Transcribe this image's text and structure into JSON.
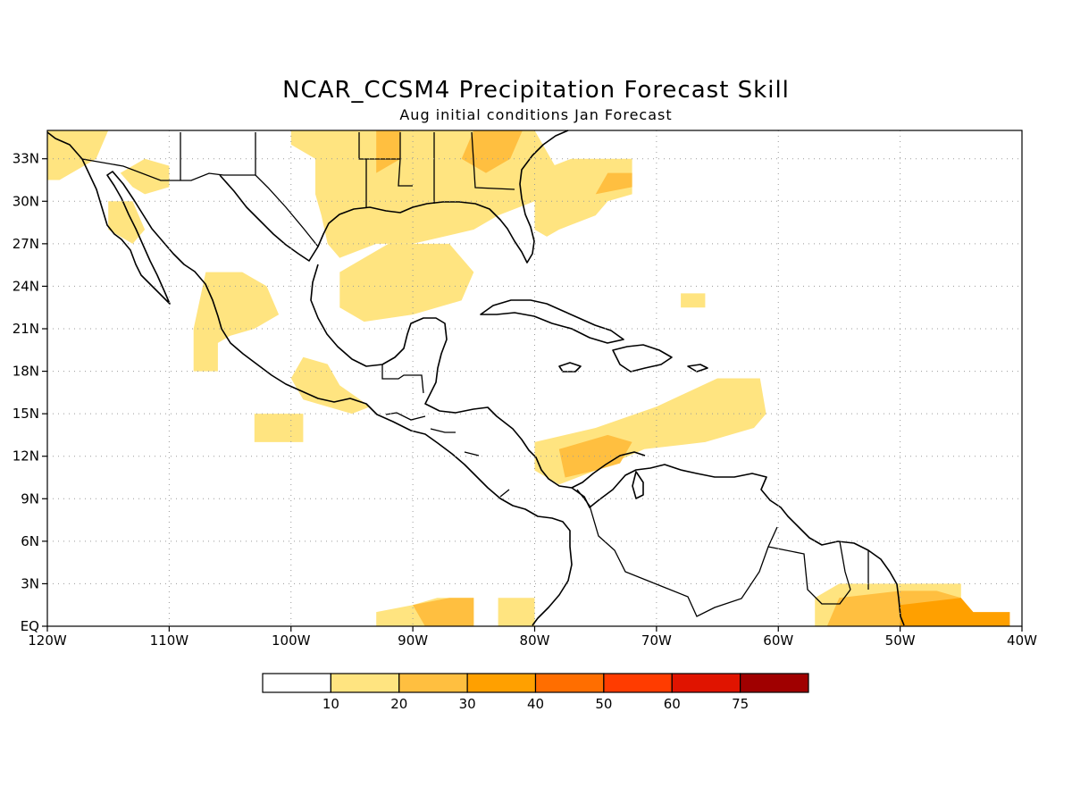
{
  "header": {
    "title": "NCAR_CCSM4 Precipitation Forecast Skill",
    "subtitle": "Aug initial conditions  Jan Forecast"
  },
  "map": {
    "lon_range": [
      -120,
      -40
    ],
    "lat_range": [
      0,
      35
    ],
    "grid": true,
    "x_ticks": [
      {
        "lon": -120,
        "label": "120W"
      },
      {
        "lon": -110,
        "label": "110W"
      },
      {
        "lon": -100,
        "label": "100W"
      },
      {
        "lon": -90,
        "label": "90W"
      },
      {
        "lon": -80,
        "label": "80W"
      },
      {
        "lon": -70,
        "label": "70W"
      },
      {
        "lon": -60,
        "label": "60W"
      },
      {
        "lon": -50,
        "label": "50W"
      },
      {
        "lon": -40,
        "label": "40W"
      }
    ],
    "y_ticks": [
      {
        "lat": 0,
        "label": "EQ"
      },
      {
        "lat": 3,
        "label": "3N"
      },
      {
        "lat": 6,
        "label": "6N"
      },
      {
        "lat": 9,
        "label": "9N"
      },
      {
        "lat": 12,
        "label": "12N"
      },
      {
        "lat": 15,
        "label": "15N"
      },
      {
        "lat": 18,
        "label": "18N"
      },
      {
        "lat": 21,
        "label": "21N"
      },
      {
        "lat": 24,
        "label": "24N"
      },
      {
        "lat": 27,
        "label": "27N"
      },
      {
        "lat": 30,
        "label": "30N"
      },
      {
        "lat": 33,
        "label": "33N"
      }
    ],
    "skill_regions": [
      {
        "level": 1,
        "points": [
          [
            -120,
            35
          ],
          [
            -115,
            35
          ],
          [
            -116,
            33
          ],
          [
            -119,
            31.5
          ],
          [
            -120,
            31.5
          ]
        ]
      },
      {
        "level": 1,
        "points": [
          [
            -114,
            32
          ],
          [
            -112,
            33
          ],
          [
            -110,
            32.5
          ],
          [
            -110,
            31
          ],
          [
            -112,
            30.5
          ],
          [
            -113,
            31
          ]
        ]
      },
      {
        "level": 1,
        "points": [
          [
            -115,
            30
          ],
          [
            -113,
            30
          ],
          [
            -112,
            28
          ],
          [
            -113,
            27
          ],
          [
            -115,
            28
          ]
        ]
      },
      {
        "level": 1,
        "points": [
          [
            -100,
            35
          ],
          [
            -80,
            35
          ],
          [
            -78,
            32
          ],
          [
            -80,
            30
          ],
          [
            -83,
            29
          ],
          [
            -85,
            28
          ],
          [
            -90,
            27
          ],
          [
            -93,
            27
          ],
          [
            -96,
            26
          ],
          [
            -97,
            27
          ],
          [
            -97.5,
            29
          ],
          [
            -98,
            30.5
          ],
          [
            -98,
            33
          ],
          [
            -100,
            34
          ]
        ]
      },
      {
        "level": 1,
        "points": [
          [
            -80,
            32
          ],
          [
            -77,
            33
          ],
          [
            -72,
            33
          ],
          [
            -72,
            30.5
          ],
          [
            -74,
            30
          ],
          [
            -75,
            29
          ],
          [
            -78,
            28
          ],
          [
            -79,
            27.5
          ],
          [
            -80,
            28
          ]
        ]
      },
      {
        "level": 1,
        "points": [
          [
            -96,
            25
          ],
          [
            -92,
            27
          ],
          [
            -87,
            27
          ],
          [
            -85,
            25
          ],
          [
            -86,
            23
          ],
          [
            -90,
            22
          ],
          [
            -94,
            21.5
          ],
          [
            -96,
            22.5
          ]
        ]
      },
      {
        "level": 1,
        "points": [
          [
            -107,
            25
          ],
          [
            -104,
            25
          ],
          [
            -102,
            24
          ],
          [
            -101,
            22
          ],
          [
            -103,
            21
          ],
          [
            -105,
            20.5
          ],
          [
            -106,
            20
          ],
          [
            -106,
            18
          ],
          [
            -108,
            18
          ],
          [
            -108,
            21
          ]
        ]
      },
      {
        "level": 1,
        "points": [
          [
            -99,
            19
          ],
          [
            -97,
            18.5
          ],
          [
            -96,
            17
          ],
          [
            -93.5,
            15.5
          ],
          [
            -95,
            15
          ],
          [
            -97,
            15.5
          ],
          [
            -99,
            16
          ],
          [
            -100,
            17.5
          ]
        ]
      },
      {
        "level": 1,
        "points": [
          [
            -103,
            15
          ],
          [
            -99,
            15
          ],
          [
            -99,
            13
          ],
          [
            -103,
            13
          ]
        ]
      },
      {
        "level": 1,
        "points": [
          [
            -80,
            13
          ],
          [
            -75,
            14
          ],
          [
            -70,
            15.5
          ],
          [
            -65,
            17.5
          ],
          [
            -61.5,
            17.5
          ],
          [
            -61,
            15
          ],
          [
            -62,
            14
          ],
          [
            -66,
            13
          ],
          [
            -71,
            12.5
          ],
          [
            -75,
            11
          ],
          [
            -78,
            10
          ],
          [
            -80,
            11
          ]
        ]
      },
      {
        "level": 1,
        "points": [
          [
            -68,
            23.5
          ],
          [
            -66,
            23.5
          ],
          [
            -66,
            22.5
          ],
          [
            -68,
            22.5
          ]
        ]
      },
      {
        "level": 1,
        "points": [
          [
            -93,
            1
          ],
          [
            -90,
            1.5
          ],
          [
            -88,
            2
          ],
          [
            -85,
            2
          ],
          [
            -85,
            0
          ],
          [
            -93,
            0
          ]
        ]
      },
      {
        "level": 1,
        "points": [
          [
            -83,
            2
          ],
          [
            -80,
            2
          ],
          [
            -80,
            0
          ],
          [
            -83,
            0
          ]
        ]
      },
      {
        "level": 1,
        "points": [
          [
            -57,
            2
          ],
          [
            -55,
            3
          ],
          [
            -50,
            3
          ],
          [
            -45,
            3
          ],
          [
            -45,
            2
          ],
          [
            -45,
            0
          ],
          [
            -57,
            0
          ]
        ]
      },
      {
        "level": 2,
        "points": [
          [
            -93,
            35
          ],
          [
            -91,
            35
          ],
          [
            -91,
            33
          ],
          [
            -93,
            32
          ]
        ]
      },
      {
        "level": 2,
        "points": [
          [
            -85,
            35
          ],
          [
            -81,
            35
          ],
          [
            -82,
            33
          ],
          [
            -84,
            32
          ],
          [
            -86,
            33
          ]
        ]
      },
      {
        "level": 2,
        "points": [
          [
            -74,
            32
          ],
          [
            -72,
            32
          ],
          [
            -72,
            31
          ],
          [
            -75,
            30.5
          ]
        ]
      },
      {
        "level": 2,
        "points": [
          [
            -78,
            12.5
          ],
          [
            -74,
            13.5
          ],
          [
            -72,
            13
          ],
          [
            -73,
            11.5
          ],
          [
            -75,
            11
          ],
          [
            -77.5,
            10.5
          ]
        ]
      },
      {
        "level": 2,
        "points": [
          [
            -90,
            1.5
          ],
          [
            -87,
            2
          ],
          [
            -85,
            2
          ],
          [
            -85,
            0
          ],
          [
            -89,
            0
          ]
        ]
      },
      {
        "level": 2,
        "points": [
          [
            -55,
            2
          ],
          [
            -50,
            2.5
          ],
          [
            -47,
            2.5
          ],
          [
            -45,
            2
          ],
          [
            -45,
            0
          ],
          [
            -56,
            0
          ]
        ]
      },
      {
        "level": 3,
        "points": [
          [
            -50,
            1.5
          ],
          [
            -45,
            2
          ],
          [
            -44,
            1
          ],
          [
            -41,
            1
          ],
          [
            -41,
            0
          ],
          [
            -50,
            0
          ]
        ]
      }
    ]
  },
  "colorbar": {
    "labels": [
      "10",
      "20",
      "30",
      "40",
      "50",
      "60",
      "75"
    ],
    "colors": [
      "#ffffff",
      "#ffe480",
      "#ffbf40",
      "#ffa000",
      "#ff6e00",
      "#ff3c00",
      "#e01400",
      "#a00000"
    ]
  }
}
